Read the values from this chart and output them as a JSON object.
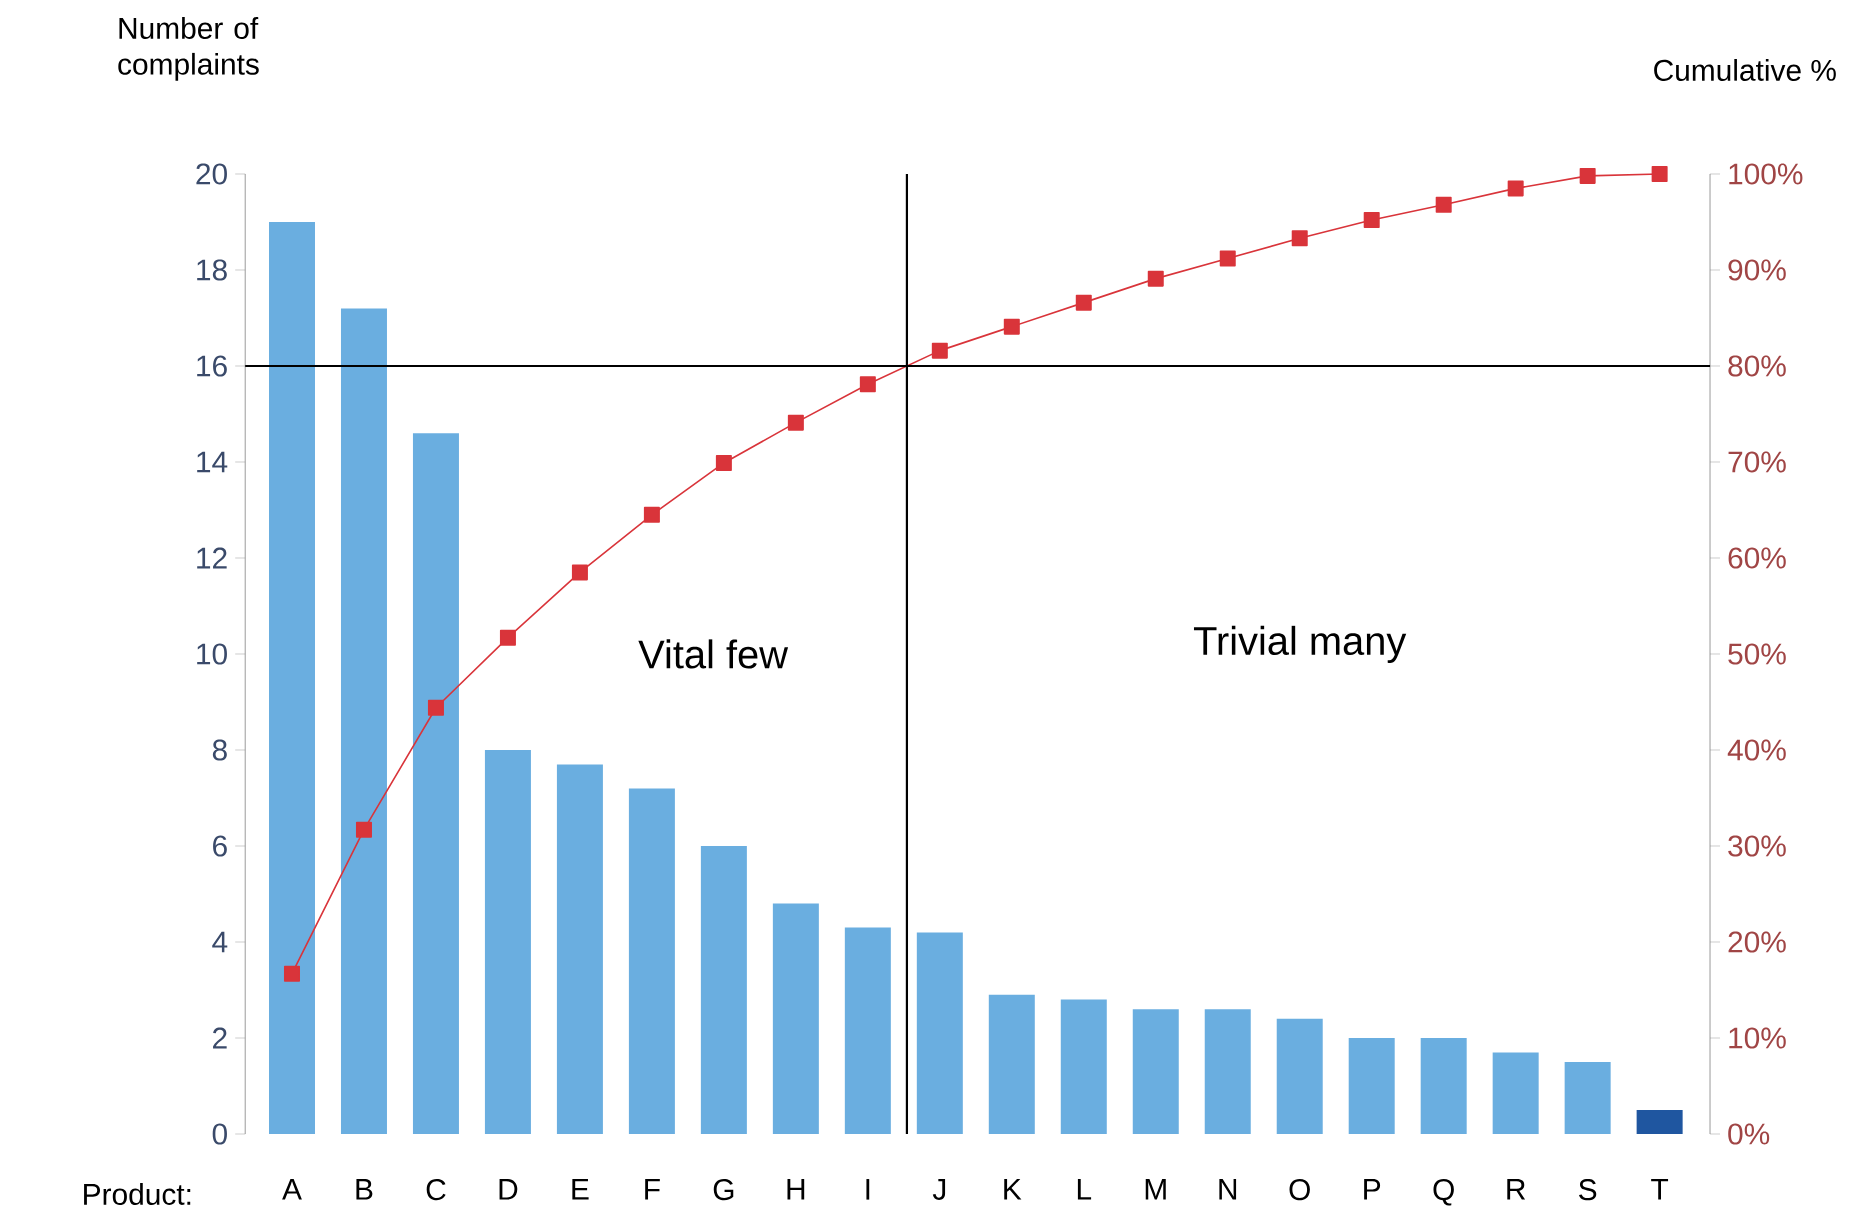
{
  "chart_data": {
    "type": "bar",
    "ylabel": "Number of complaints",
    "y2label": "Cumulative %",
    "xlabel": "Product:",
    "categories": [
      "A",
      "B",
      "C",
      "D",
      "E",
      "F",
      "G",
      "H",
      "I",
      "J",
      "K",
      "L",
      "M",
      "N",
      "O",
      "P",
      "Q",
      "R",
      "S",
      "T"
    ],
    "series": [
      {
        "colors": [
          "#6aaee0",
          "#6aaee0",
          "#6aaee0",
          "#6aaee0",
          "#6aaee0",
          "#6aaee0",
          "#6aaee0",
          "#6aaee0",
          "#6aaee0",
          "#6aaee0",
          "#6aaee0",
          "#6aaee0",
          "#6aaee0",
          "#6aaee0",
          "#6aaee0",
          "#6aaee0",
          "#6aaee0",
          "#6aaee0",
          "#6aaee0",
          "#1f56a0"
        ],
        "values": [
          19,
          17.2,
          14.6,
          8,
          7.7,
          7.2,
          6,
          4.8,
          4.3,
          4.2,
          2.9,
          2.8,
          2.6,
          2.6,
          2.4,
          2,
          2,
          1.7,
          1.5,
          0.5
        ]
      },
      {
        "type": "line",
        "axis": "y2",
        "color": "#d9343a",
        "values": [
          16.7,
          31.7,
          44.4,
          51.7,
          58.5,
          64.5,
          69.9,
          74.1,
          78.1,
          81.6,
          84.1,
          86.6,
          89.1,
          91.2,
          93.3,
          95.2,
          96.8,
          98.5,
          99.8,
          100
        ]
      }
    ],
    "marker": "square",
    "ylim": [
      0,
      20
    ],
    "yticks": [
      0,
      2,
      4,
      6,
      8,
      10,
      12,
      14,
      16,
      18,
      20
    ],
    "y2lim": [
      0,
      100
    ],
    "y2ticks": [
      {
        "value": 0,
        "label": "0%"
      },
      {
        "value": 10,
        "label": "10%"
      },
      {
        "value": 20,
        "label": "20%"
      },
      {
        "value": 30,
        "label": "30%"
      },
      {
        "value": 40,
        "label": "40%"
      },
      {
        "value": 50,
        "label": "50%"
      },
      {
        "value": 60,
        "label": "60%"
      },
      {
        "value": 70,
        "label": "70%"
      },
      {
        "value": 80,
        "label": "80%"
      },
      {
        "value": 90,
        "label": "90%"
      },
      {
        "value": 100,
        "label": "100%"
      }
    ],
    "ref_lines": [
      {
        "axis": "y2",
        "value": 80,
        "color": "#000000"
      }
    ],
    "annotations": [
      "Vital few",
      "Trivial many"
    ]
  }
}
